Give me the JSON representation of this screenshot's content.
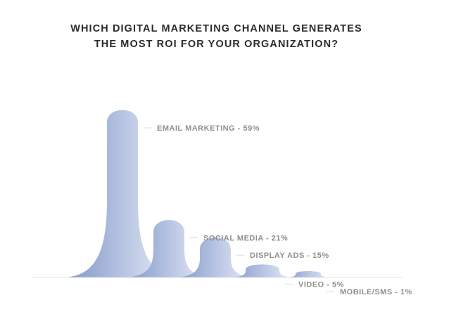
{
  "chart_data": {
    "type": "area",
    "title_lines": [
      "WHICH DIGITAL MARKETING CHANNEL GENERATES",
      "THE MOST ROI FOR YOUR ORGANIZATION?"
    ],
    "categories": [
      "EMAIL MARKETING",
      "SOCIAL MEDIA",
      "DISPLAY ADS",
      "VIDEO",
      "MOBILE/SMS"
    ],
    "values": [
      59,
      21,
      15,
      5,
      1
    ],
    "unit": "%",
    "labels": [
      "EMAIL MARKETING - 59%",
      "SOCIAL MEDIA - 21%",
      "DISPLAY ADS - 15%",
      "VIDEO - 5%",
      "MOBILE/SMS - 1%"
    ],
    "legend": "none",
    "grid": false
  },
  "colors": {
    "peak_dark": "#7b93c9",
    "peak_light": "#f2f4fb",
    "baseline": "#e3e3e3",
    "leader": "#d9d9d9",
    "label": "#8f8f8f",
    "title": "#2b2b2b"
  }
}
